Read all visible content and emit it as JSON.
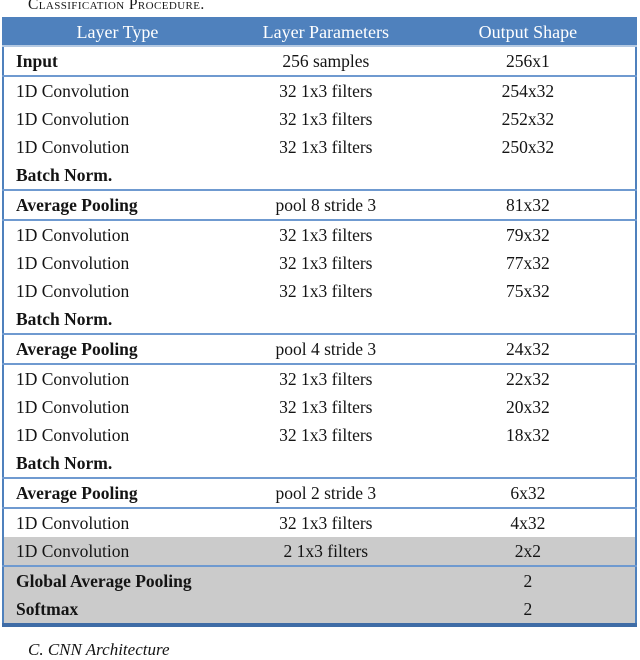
{
  "page": {
    "top_caption": "Classification Procedure.",
    "bottom_caption": "C.  CNN Architecture"
  },
  "table": {
    "columns": [
      "Layer Type",
      "Layer Parameters",
      "Output Shape"
    ],
    "rows": [
      {
        "layer": "Input",
        "params": "256 samples",
        "output": "256x1",
        "bold": true,
        "shaded": false,
        "sep_after": true
      },
      {
        "layer": "1D Convolution",
        "params": "32 1x3 filters",
        "output": "254x32",
        "bold": false,
        "shaded": false,
        "sep_after": false
      },
      {
        "layer": "1D Convolution",
        "params": "32 1x3 filters",
        "output": "252x32",
        "bold": false,
        "shaded": false,
        "sep_after": false
      },
      {
        "layer": "1D Convolution",
        "params": "32 1x3 filters",
        "output": "250x32",
        "bold": false,
        "shaded": false,
        "sep_after": false
      },
      {
        "layer": "Batch Norm.",
        "params": "",
        "output": "",
        "bold": true,
        "shaded": false,
        "sep_after": true
      },
      {
        "layer": "Average Pooling",
        "params": "pool 8 stride 3",
        "output": "81x32",
        "bold": true,
        "shaded": false,
        "sep_after": true
      },
      {
        "layer": "1D Convolution",
        "params": "32 1x3 filters",
        "output": "79x32",
        "bold": false,
        "shaded": false,
        "sep_after": false
      },
      {
        "layer": "1D Convolution",
        "params": "32 1x3 filters",
        "output": "77x32",
        "bold": false,
        "shaded": false,
        "sep_after": false
      },
      {
        "layer": "1D Convolution",
        "params": "32 1x3 filters",
        "output": "75x32",
        "bold": false,
        "shaded": false,
        "sep_after": false
      },
      {
        "layer": "Batch Norm.",
        "params": "",
        "output": "",
        "bold": true,
        "shaded": false,
        "sep_after": true
      },
      {
        "layer": "Average Pooling",
        "params": "pool 4 stride 3",
        "output": "24x32",
        "bold": true,
        "shaded": false,
        "sep_after": true
      },
      {
        "layer": "1D Convolution",
        "params": "32 1x3 filters",
        "output": "22x32",
        "bold": false,
        "shaded": false,
        "sep_after": false
      },
      {
        "layer": "1D Convolution",
        "params": "32 1x3 filters",
        "output": "20x32",
        "bold": false,
        "shaded": false,
        "sep_after": false
      },
      {
        "layer": "1D Convolution",
        "params": "32 1x3 filters",
        "output": "18x32",
        "bold": false,
        "shaded": false,
        "sep_after": false
      },
      {
        "layer": "Batch Norm.",
        "params": "",
        "output": "",
        "bold": true,
        "shaded": false,
        "sep_after": true
      },
      {
        "layer": "Average Pooling",
        "params": "pool 2 stride 3",
        "output": "6x32",
        "bold": true,
        "shaded": false,
        "sep_after": true
      },
      {
        "layer": "1D Convolution",
        "params": "32 1x3 filters",
        "output": "4x32",
        "bold": false,
        "shaded": false,
        "sep_after": false
      },
      {
        "layer": "1D Convolution",
        "params": "2 1x3 filters",
        "output": "2x2",
        "bold": false,
        "shaded": true,
        "sep_after": true
      },
      {
        "layer": "Global Average Pooling",
        "params": "",
        "output": "2",
        "bold": true,
        "shaded": true,
        "sep_after": false
      },
      {
        "layer": "Softmax",
        "params": "",
        "output": "2",
        "bold": true,
        "shaded": true,
        "sep_after": false
      }
    ],
    "colors": {
      "header_bg": "#4f81bd",
      "header_text": "#ffffff",
      "outer_border": "#4f81bd",
      "bottom_border": "#3f6ca6",
      "separator": "#6f9ad0",
      "shaded_row_bg": "#cbcbcb"
    }
  }
}
